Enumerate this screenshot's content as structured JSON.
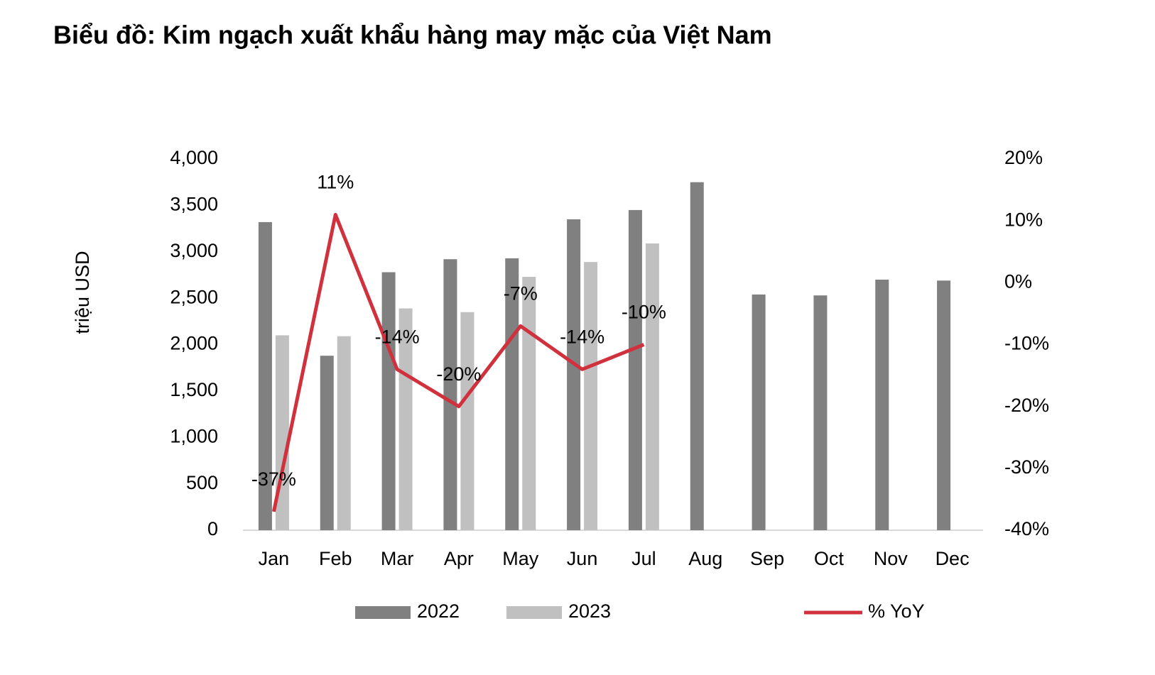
{
  "chart_data": {
    "type": "bar",
    "title": "Biểu đồ: Kim ngạch xuất khẩu hàng may mặc của Việt Nam",
    "y_label": "triệu USD",
    "categories": [
      "Jan",
      "Feb",
      "Mar",
      "Apr",
      "May",
      "Jun",
      "Jul",
      "Aug",
      "Sep",
      "Oct",
      "Nov",
      "Dec"
    ],
    "series": [
      {
        "name": "2022",
        "color": "#808080",
        "values": [
          3320,
          1880,
          2780,
          2920,
          2930,
          3350,
          3450,
          3750,
          2540,
          2530,
          2700,
          2690
        ]
      },
      {
        "name": "2023",
        "color": "#c0c0c0",
        "values": [
          2100,
          2090,
          2390,
          2350,
          2730,
          2890,
          3090,
          null,
          null,
          null,
          null,
          null
        ]
      },
      {
        "name": "% YoY",
        "color": "#d0313c",
        "type": "line",
        "axis": "y2",
        "values": [
          -37,
          11,
          -14,
          -20,
          -7,
          -14,
          -10,
          null,
          null,
          null,
          null,
          null
        ],
        "value_labels": [
          "-37%",
          "11%",
          "-14%",
          "-20%",
          "-7%",
          "-14%",
          "-10%",
          null,
          null,
          null,
          null,
          null
        ]
      }
    ],
    "ylim": [
      0,
      4000
    ],
    "yticks": [
      0,
      500,
      {
        "value": 1000,
        "label": "1,000"
      },
      {
        "value": 1500,
        "label": "1,500"
      },
      {
        "value": 2000,
        "label": "2,000"
      },
      {
        "value": 2500,
        "label": "2,500"
      },
      {
        "value": 3000,
        "label": "3,000"
      },
      {
        "value": 3500,
        "label": "3,500"
      },
      {
        "value": 4000,
        "label": "4,000"
      }
    ],
    "y2lim": [
      -40,
      20
    ],
    "y2ticks": [
      {
        "value": -40,
        "label": "-40%"
      },
      {
        "value": -30,
        "label": "-30%"
      },
      {
        "value": -20,
        "label": "-20%"
      },
      {
        "value": -10,
        "label": "-10%"
      },
      {
        "value": 0,
        "label": "0%"
      },
      {
        "value": 10,
        "label": "10%"
      },
      {
        "value": 20,
        "label": "20%"
      }
    ],
    "grid": false,
    "legend": "bottom"
  }
}
